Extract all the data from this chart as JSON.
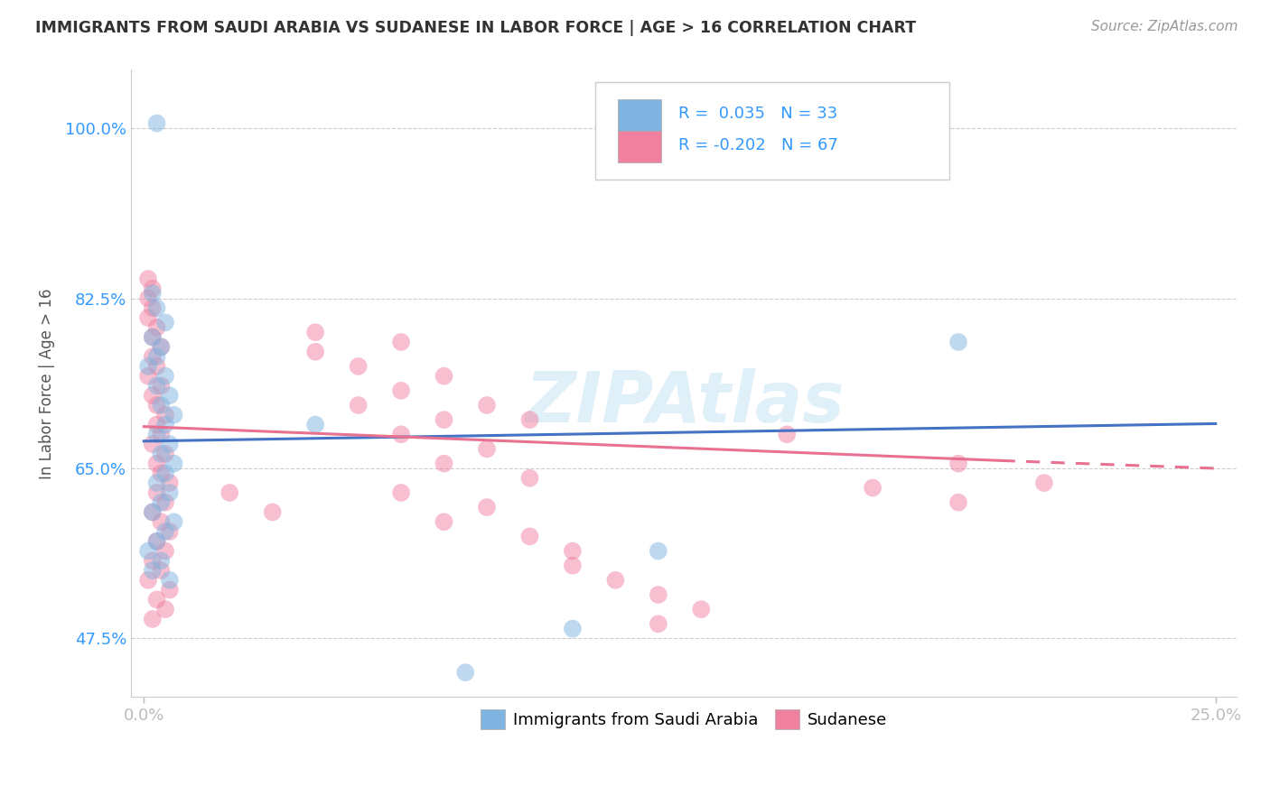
{
  "title": "IMMIGRANTS FROM SAUDI ARABIA VS SUDANESE IN LABOR FORCE | AGE > 16 CORRELATION CHART",
  "source": "Source: ZipAtlas.com",
  "xlabel_ticks": [
    "0.0%",
    "25.0%"
  ],
  "ylabel_ticks": [
    "47.5%",
    "65.0%",
    "82.5%",
    "100.0%"
  ],
  "ylabel_label": "In Labor Force | Age > 16",
  "xlim": [
    -0.003,
    0.255
  ],
  "ylim": [
    0.415,
    1.06
  ],
  "ytick_positions": [
    0.475,
    0.65,
    0.825,
    1.0
  ],
  "xtick_positions": [
    0.0,
    0.25
  ],
  "saudi_color": "#7fb3e0",
  "sudanese_color": "#f080a0",
  "saudi_line_color": "#4472c4",
  "sudanese_line_color": "#e87090",
  "watermark": "ZIPAtlas",
  "saudi_line": [
    [
      0.0,
      0.678
    ],
    [
      0.25,
      0.696
    ]
  ],
  "sudanese_line_solid": [
    [
      0.0,
      0.693
    ],
    [
      0.2,
      0.658
    ]
  ],
  "sudanese_line_dash": [
    [
      0.2,
      0.658
    ],
    [
      0.25,
      0.65
    ]
  ],
  "saudi_points": [
    [
      0.003,
      1.005
    ],
    [
      0.002,
      0.83
    ],
    [
      0.003,
      0.815
    ],
    [
      0.005,
      0.8
    ],
    [
      0.002,
      0.785
    ],
    [
      0.004,
      0.775
    ],
    [
      0.003,
      0.765
    ],
    [
      0.001,
      0.755
    ],
    [
      0.005,
      0.745
    ],
    [
      0.003,
      0.735
    ],
    [
      0.006,
      0.725
    ],
    [
      0.004,
      0.715
    ],
    [
      0.007,
      0.705
    ],
    [
      0.005,
      0.695
    ],
    [
      0.003,
      0.685
    ],
    [
      0.006,
      0.675
    ],
    [
      0.004,
      0.665
    ],
    [
      0.007,
      0.655
    ],
    [
      0.005,
      0.645
    ],
    [
      0.003,
      0.635
    ],
    [
      0.006,
      0.625
    ],
    [
      0.004,
      0.615
    ],
    [
      0.002,
      0.605
    ],
    [
      0.007,
      0.595
    ],
    [
      0.005,
      0.585
    ],
    [
      0.003,
      0.575
    ],
    [
      0.001,
      0.565
    ],
    [
      0.004,
      0.555
    ],
    [
      0.002,
      0.545
    ],
    [
      0.006,
      0.535
    ],
    [
      0.04,
      0.695
    ],
    [
      0.19,
      0.78
    ],
    [
      0.12,
      0.565
    ],
    [
      0.1,
      0.485
    ],
    [
      0.075,
      0.44
    ]
  ],
  "sudanese_points": [
    [
      0.001,
      0.845
    ],
    [
      0.002,
      0.835
    ],
    [
      0.001,
      0.825
    ],
    [
      0.002,
      0.815
    ],
    [
      0.001,
      0.805
    ],
    [
      0.003,
      0.795
    ],
    [
      0.002,
      0.785
    ],
    [
      0.004,
      0.775
    ],
    [
      0.002,
      0.765
    ],
    [
      0.003,
      0.755
    ],
    [
      0.001,
      0.745
    ],
    [
      0.004,
      0.735
    ],
    [
      0.002,
      0.725
    ],
    [
      0.003,
      0.715
    ],
    [
      0.005,
      0.705
    ],
    [
      0.003,
      0.695
    ],
    [
      0.004,
      0.685
    ],
    [
      0.002,
      0.675
    ],
    [
      0.005,
      0.665
    ],
    [
      0.003,
      0.655
    ],
    [
      0.004,
      0.645
    ],
    [
      0.006,
      0.635
    ],
    [
      0.003,
      0.625
    ],
    [
      0.005,
      0.615
    ],
    [
      0.002,
      0.605
    ],
    [
      0.004,
      0.595
    ],
    [
      0.006,
      0.585
    ],
    [
      0.003,
      0.575
    ],
    [
      0.005,
      0.565
    ],
    [
      0.002,
      0.555
    ],
    [
      0.004,
      0.545
    ],
    [
      0.001,
      0.535
    ],
    [
      0.006,
      0.525
    ],
    [
      0.003,
      0.515
    ],
    [
      0.005,
      0.505
    ],
    [
      0.002,
      0.495
    ],
    [
      0.04,
      0.79
    ],
    [
      0.04,
      0.77
    ],
    [
      0.06,
      0.78
    ],
    [
      0.05,
      0.755
    ],
    [
      0.07,
      0.745
    ],
    [
      0.06,
      0.73
    ],
    [
      0.05,
      0.715
    ],
    [
      0.07,
      0.7
    ],
    [
      0.08,
      0.715
    ],
    [
      0.09,
      0.7
    ],
    [
      0.06,
      0.685
    ],
    [
      0.08,
      0.67
    ],
    [
      0.07,
      0.655
    ],
    [
      0.09,
      0.64
    ],
    [
      0.06,
      0.625
    ],
    [
      0.08,
      0.61
    ],
    [
      0.07,
      0.595
    ],
    [
      0.09,
      0.58
    ],
    [
      0.1,
      0.565
    ],
    [
      0.1,
      0.55
    ],
    [
      0.11,
      0.535
    ],
    [
      0.12,
      0.52
    ],
    [
      0.13,
      0.505
    ],
    [
      0.12,
      0.49
    ],
    [
      0.02,
      0.625
    ],
    [
      0.03,
      0.605
    ],
    [
      0.15,
      0.685
    ],
    [
      0.17,
      0.63
    ],
    [
      0.19,
      0.655
    ],
    [
      0.19,
      0.615
    ],
    [
      0.21,
      0.635
    ]
  ]
}
